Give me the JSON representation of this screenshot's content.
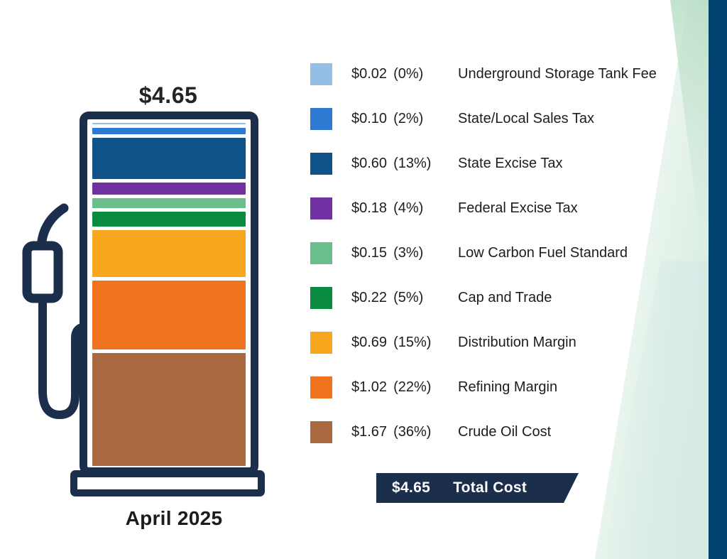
{
  "header": {
    "price_label": "$4.65"
  },
  "footer": {
    "date_label": "April 2025"
  },
  "total_banner": {
    "amount": "$4.65",
    "label": "Total Cost"
  },
  "colors": {
    "pump_outline_navy": "#1b2f4c",
    "edge_bar_navy": "#00436f",
    "background": "#ffffff",
    "accent_wedge_green": "#cde7db"
  },
  "chart_data": {
    "type": "bar",
    "stacked": true,
    "title": "$4.65",
    "period_label": "April 2025",
    "total": 4.65,
    "legend_position": "right",
    "stack_order": "top-to-bottom",
    "categories": [
      "Underground Storage Tank Fee",
      "State/Local Sales Tax",
      "State Excise Tax",
      "Federal Excise Tax",
      "Low Carbon Fuel Standard",
      "Cap and Trade",
      "Distribution Margin",
      "Refining Margin",
      "Crude Oil Cost"
    ],
    "values": [
      0.02,
      0.1,
      0.6,
      0.18,
      0.15,
      0.22,
      0.69,
      1.02,
      1.67
    ],
    "series": [
      {
        "name": "Underground Storage Tank Fee",
        "value": 0.02,
        "amount_label": "$0.02",
        "pct_label": "(0%)",
        "color": "#94bee3"
      },
      {
        "name": "State/Local Sales Tax",
        "value": 0.1,
        "amount_label": "$0.10",
        "pct_label": "(2%)",
        "color": "#2e79d2"
      },
      {
        "name": "State Excise Tax",
        "value": 0.6,
        "amount_label": "$0.60",
        "pct_label": "(13%)",
        "color": "#0e5289"
      },
      {
        "name": "Federal Excise Tax",
        "value": 0.18,
        "amount_label": "$0.18",
        "pct_label": "(4%)",
        "color": "#7130a3"
      },
      {
        "name": "Low Carbon Fuel Standard",
        "value": 0.15,
        "amount_label": "$0.15",
        "pct_label": "(3%)",
        "color": "#6abe8c"
      },
      {
        "name": "Cap and Trade",
        "value": 0.22,
        "amount_label": "$0.22",
        "pct_label": "(5%)",
        "color": "#0a8c40"
      },
      {
        "name": "Distribution Margin",
        "value": 0.69,
        "amount_label": "$0.69",
        "pct_label": "(15%)",
        "color": "#f6a71d"
      },
      {
        "name": "Refining Margin",
        "value": 1.02,
        "amount_label": "$1.02",
        "pct_label": "(22%)",
        "color": "#f0741f"
      },
      {
        "name": "Crude Oil Cost",
        "value": 1.67,
        "amount_label": "$1.67",
        "pct_label": "(36%)",
        "color": "#a9693f"
      }
    ]
  }
}
